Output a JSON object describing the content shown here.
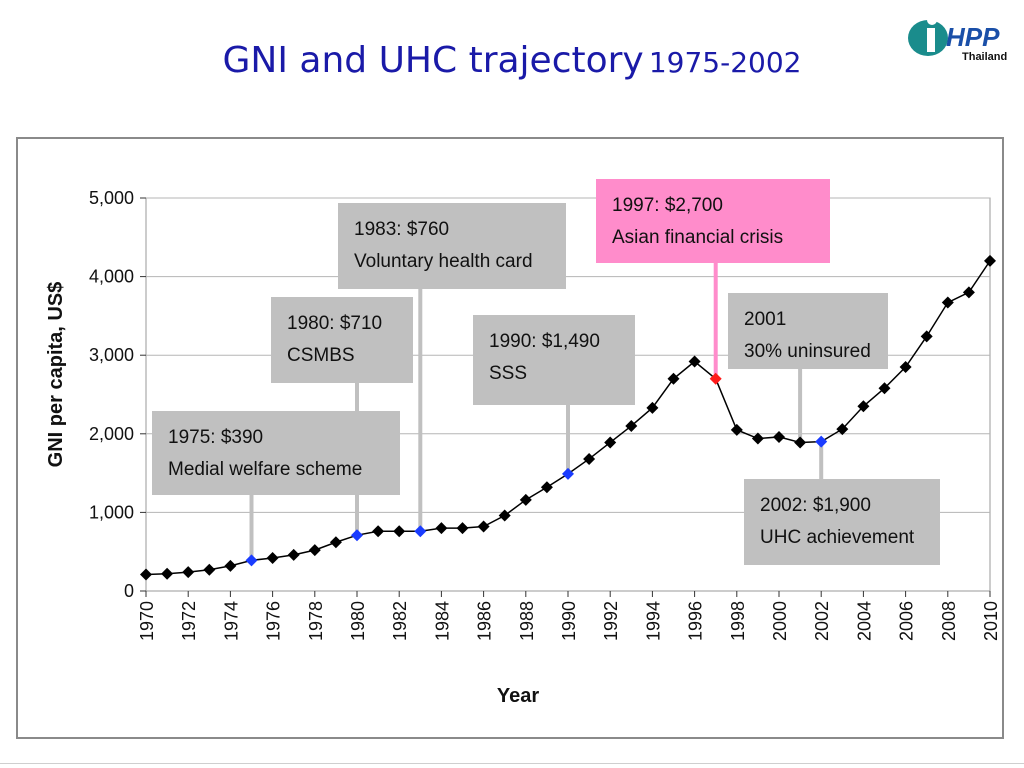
{
  "slide": {
    "title_main": "GNI and UHC trajectory",
    "title_years": "1975-2002",
    "logo_text": "HPP",
    "logo_subtext": "Thailand"
  },
  "colors": {
    "title": "#1a1aa8",
    "series": "#000000",
    "highlight_blue": "#1a3cff",
    "highlight_red": "#ff1a1a",
    "annotation_gray": "#c0c0c0",
    "annotation_pink": "#ff8ccb",
    "logo_teal": "#1a8c8c",
    "logo_blue": "#1a4fa8"
  },
  "chart_data": {
    "type": "line",
    "xlabel": "Year",
    "ylabel": "GNI per capita, US$",
    "ylim": [
      0,
      5000
    ],
    "xlim": [
      1970,
      2010
    ],
    "yticks": [
      0,
      1000,
      2000,
      3000,
      4000,
      5000
    ],
    "ytick_labels": [
      "0",
      "1,000",
      "2,000",
      "3,000",
      "4,000",
      "5,000"
    ],
    "xticks": [
      "1970",
      "1972",
      "1974",
      "1976",
      "1978",
      "1980",
      "1982",
      "1984",
      "1986",
      "1988",
      "1990",
      "1992",
      "1994",
      "1996",
      "1998",
      "2000",
      "2002",
      "2004",
      "2006",
      "2008",
      "2010"
    ],
    "grid": "horizontal",
    "series": [
      {
        "x": [
          1970,
          1971,
          1972,
          1973,
          1974,
          1975,
          1976,
          1977,
          1978,
          1979,
          1980,
          1981,
          1982,
          1983,
          1984,
          1985,
          1986,
          1987,
          1988,
          1989,
          1990,
          1991,
          1992,
          1993,
          1994,
          1995,
          1996,
          1997,
          1998,
          1999,
          2000,
          2001,
          2002,
          2003,
          2004,
          2005,
          2006,
          2007,
          2008,
          2009,
          2010
        ],
        "y": [
          210,
          220,
          240,
          270,
          320,
          390,
          420,
          460,
          520,
          620,
          710,
          760,
          760,
          760,
          800,
          800,
          820,
          960,
          1160,
          1320,
          1490,
          1680,
          1890,
          2100,
          2330,
          2700,
          2920,
          2700,
          2050,
          1940,
          1960,
          1890,
          1900,
          2060,
          2350,
          2580,
          2850,
          3240,
          3670,
          3800,
          4200
        ]
      }
    ],
    "highlights": [
      {
        "x": 1975,
        "y": 390,
        "color": "blue"
      },
      {
        "x": 1980,
        "y": 710,
        "color": "blue"
      },
      {
        "x": 1983,
        "y": 760,
        "color": "blue"
      },
      {
        "x": 1990,
        "y": 1490,
        "color": "blue"
      },
      {
        "x": 1997,
        "y": 2700,
        "color": "red"
      },
      {
        "x": 2002,
        "y": 1900,
        "color": "blue"
      }
    ],
    "annotations": [
      {
        "line1": "1975: $390",
        "line2": "Medial welfare scheme",
        "fill": "gray"
      },
      {
        "line1": "1980: $710",
        "line2": "CSMBS",
        "fill": "gray"
      },
      {
        "line1": "1983: $760",
        "line2": "Voluntary health card",
        "fill": "gray"
      },
      {
        "line1": "1990: $1,490",
        "line2": "SSS",
        "fill": "gray"
      },
      {
        "line1": "1997: $2,700",
        "line2": "Asian financial crisis",
        "fill": "pink"
      },
      {
        "line1": "2001",
        "line2": "30% uninsured",
        "fill": "gray"
      },
      {
        "line1": "2002: $1,900",
        "line2": "UHC achievement",
        "fill": "gray"
      }
    ]
  }
}
